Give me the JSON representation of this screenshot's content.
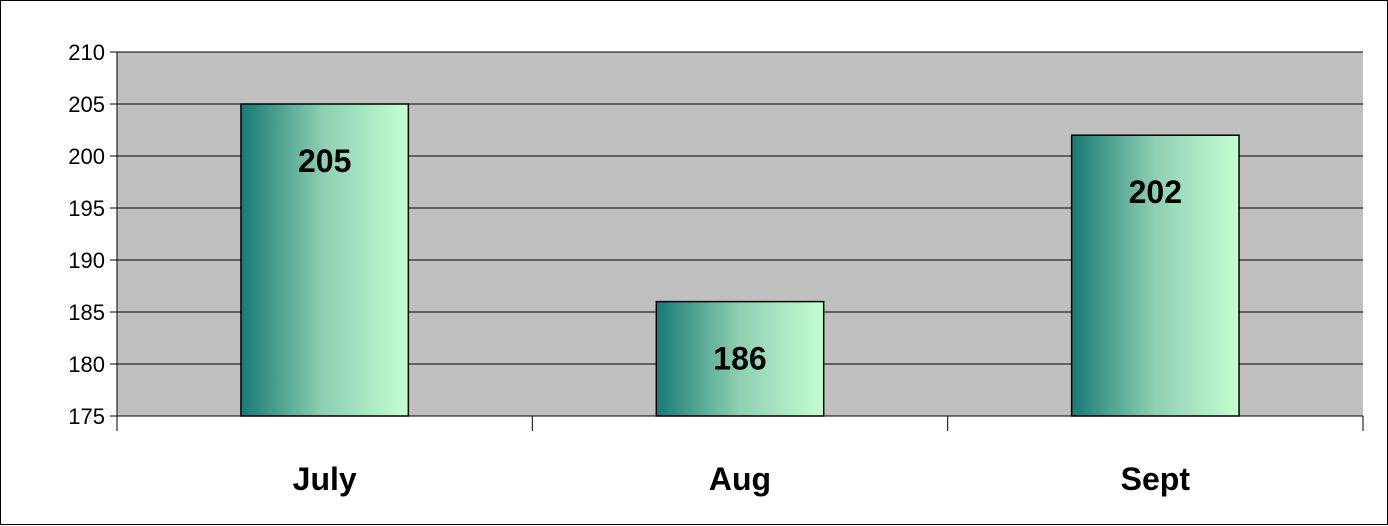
{
  "chart_data": {
    "type": "bar",
    "categories": [
      "July",
      "Aug",
      "Sept"
    ],
    "values": [
      205,
      186,
      202
    ],
    "ylim": [
      175,
      210
    ],
    "yticks": [
      175,
      180,
      185,
      190,
      195,
      200,
      205,
      210
    ],
    "grid": true,
    "legend": "none",
    "data_labels": true,
    "colors": {
      "plot_background": "#c0c0c0",
      "gridline": "#000000",
      "bar_gradient_start": "#187a76",
      "bar_gradient_mid": "#8fd0b3",
      "bar_gradient_end": "#c4ffd0",
      "bar_outline": "#000000"
    }
  }
}
